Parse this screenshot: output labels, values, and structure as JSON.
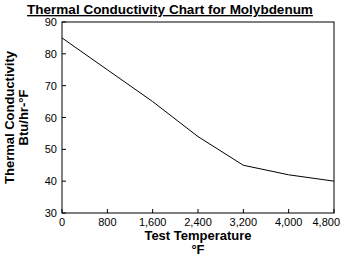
{
  "chart_data": {
    "type": "line",
    "title": "Thermal Conductivity Chart for Molybdenum",
    "ylabel": [
      "Thermal Conductivity",
      "Btu/hr-°F"
    ],
    "xlabel": [
      "Test Temperature",
      "°F"
    ],
    "x": [
      0,
      800,
      1600,
      2400,
      3200,
      4000,
      4800
    ],
    "series": [
      {
        "name": "Molybdenum",
        "color": "#000000",
        "values": [
          85,
          75,
          65,
          54,
          45,
          42,
          40
        ]
      }
    ],
    "xlim": [
      0,
      4800
    ],
    "xticks": [
      0,
      800,
      {
        "value": 1600,
        "label": "1,600"
      },
      {
        "value": 2400,
        "label": "2,400"
      },
      {
        "value": 3200,
        "label": "3,200"
      },
      {
        "value": 4000,
        "label": "4,000"
      },
      {
        "value": 4800,
        "label": "4,800"
      }
    ],
    "ylim": [
      30,
      90
    ],
    "yticks": [
      30,
      40,
      50,
      60,
      70,
      80,
      90
    ],
    "grid": false
  }
}
